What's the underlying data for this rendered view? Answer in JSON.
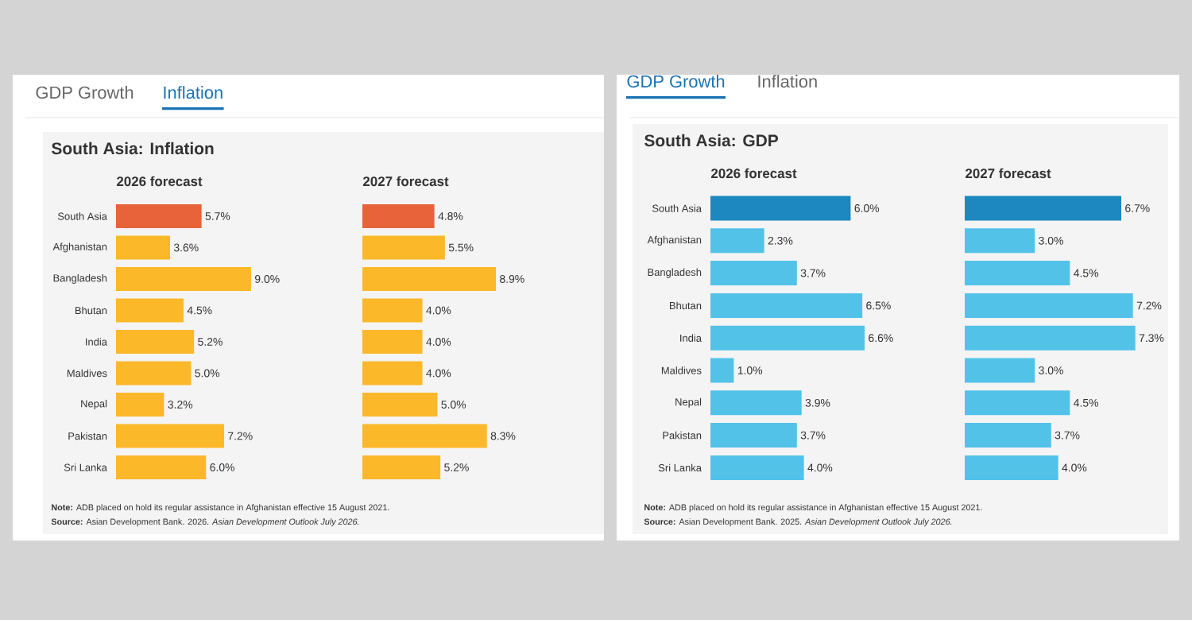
{
  "chart_data": [
    {
      "type": "bar",
      "orientation": "horizontal",
      "title": "South Asia: Inflation",
      "subtitle": "2026 forecast",
      "categories": [
        "South Asia",
        "Afghanistan",
        "Bangladesh",
        "Bhutan",
        "India",
        "Maldives",
        "Nepal",
        "Pakistan",
        "Sri Lanka"
      ],
      "values": [
        5.7,
        3.6,
        9.0,
        4.5,
        5.2,
        5.0,
        3.2,
        7.2,
        6.0
      ],
      "value_labels": [
        "5.7%",
        "3.6%",
        "9.0%",
        "4.5%",
        "5.2%",
        "5.0%",
        "3.2%",
        "7.2%",
        "6.0%"
      ],
      "colors": [
        "#e8623a",
        "#fbb829",
        "#fbb829",
        "#fbb829",
        "#fbb829",
        "#fbb829",
        "#fbb829",
        "#fbb829",
        "#fbb829"
      ],
      "annotations": [
        "GDP Growth",
        "Inflation",
        "**Note:** ADB placed on hold its regular assistance in Afghanistan effective 15 August 2021.",
        "**Source:** Asian Development Bank. 2026. *Asian Development Outlook July 2026.*"
      ]
    },
    {
      "type": "bar",
      "orientation": "horizontal",
      "subtitle": "2027 forecast",
      "categories": [
        null,
        null,
        null,
        null,
        null,
        null,
        null,
        null,
        null
      ],
      "values": [
        4.8,
        5.5,
        8.9,
        4.0,
        4.0,
        4.0,
        5.0,
        8.3,
        5.2
      ],
      "value_labels": [
        "4.8%",
        "5.5%",
        "8.9%",
        "4.0%",
        "4.0%",
        "4.0%",
        "5.0%",
        "8.3%",
        "5.2%"
      ],
      "colors": [
        "#e8623a",
        "#fbb829",
        "#fbb829",
        "#fbb829",
        "#fbb829",
        "#fbb829",
        "#fbb829",
        "#fbb829",
        "#fbb829"
      ]
    },
    {
      "type": "bar",
      "orientation": "horizontal",
      "title": "South Asia: GDP",
      "subtitle": "2026 forecast",
      "categories": [
        "South Asia",
        "Afghanistan",
        "Bangladesh",
        "Bhutan",
        "India",
        "Maldives",
        "Nepal",
        "Pakistan",
        "Sri Lanka"
      ],
      "values": [
        6.0,
        2.3,
        3.7,
        6.5,
        6.6,
        1.0,
        3.9,
        3.7,
        4.0
      ],
      "value_labels": [
        "6.0%",
        "2.3%",
        "3.7%",
        "6.5%",
        "6.6%",
        "1.0%",
        "3.9%",
        "3.7%",
        "4.0%"
      ],
      "colors": [
        "#1d87bf",
        "#52c2e8",
        "#52c2e8",
        "#52c2e8",
        "#52c2e8",
        "#52c2e8",
        "#52c2e8",
        "#52c2e8",
        "#52c2e8"
      ],
      "annotations": [
        "GDP Growth",
        "Inflation",
        "**Note:** ADB placed on hold its regular assistance in Afghanistan effective 15 August 2021.",
        "**Source:** Asian Development Bank. 2025. *Asian Development Outlook July 2026.*"
      ]
    },
    {
      "type": "bar",
      "orientation": "horizontal",
      "subtitle": "2027 forecast",
      "categories": [
        null,
        null,
        null,
        null,
        null,
        null,
        null,
        null,
        null
      ],
      "values": [
        6.7,
        3.0,
        4.5,
        7.2,
        7.3,
        3.0,
        4.5,
        3.7,
        4.0
      ],
      "value_labels": [
        "6.7%",
        "3.0%",
        "4.5%",
        "7.2%",
        "7.3%",
        "3.0%",
        "4.5%",
        "3.7%",
        "4.0%"
      ],
      "colors": [
        "#1d87bf",
        "#52c2e8",
        "#52c2e8",
        "#52c2e8",
        "#52c2e8",
        "#52c2e8",
        "#52c2e8",
        "#52c2e8",
        "#52c2e8"
      ]
    }
  ]
}
